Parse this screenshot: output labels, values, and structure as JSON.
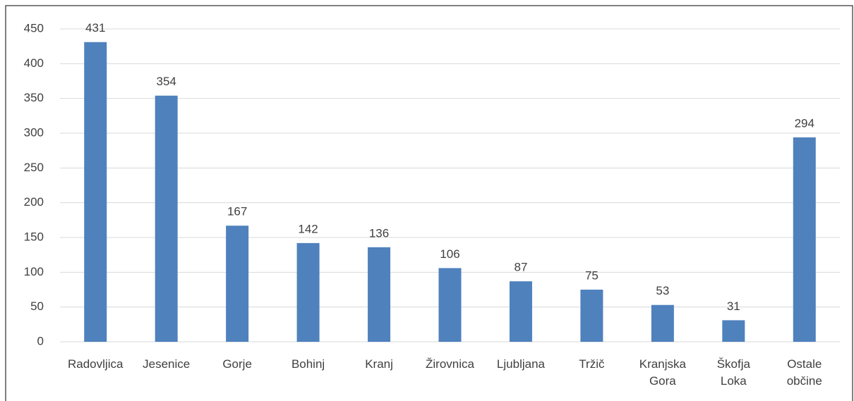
{
  "chart_data": {
    "type": "bar",
    "categories": [
      "Radovljica",
      "Jesenice",
      "Gorje",
      "Bohinj",
      "Kranj",
      "Žirovnica",
      "Ljubljana",
      "Tržič",
      "Kranjska Gora",
      "Škofja Loka",
      "Ostale občine"
    ],
    "values": [
      431,
      354,
      167,
      142,
      136,
      106,
      87,
      75,
      53,
      31,
      294
    ],
    "color": "#4f81bd",
    "ylim": [
      0,
      450
    ],
    "yticks": [
      0,
      50,
      100,
      150,
      200,
      250,
      300,
      350,
      400,
      450
    ],
    "grid": true
  }
}
